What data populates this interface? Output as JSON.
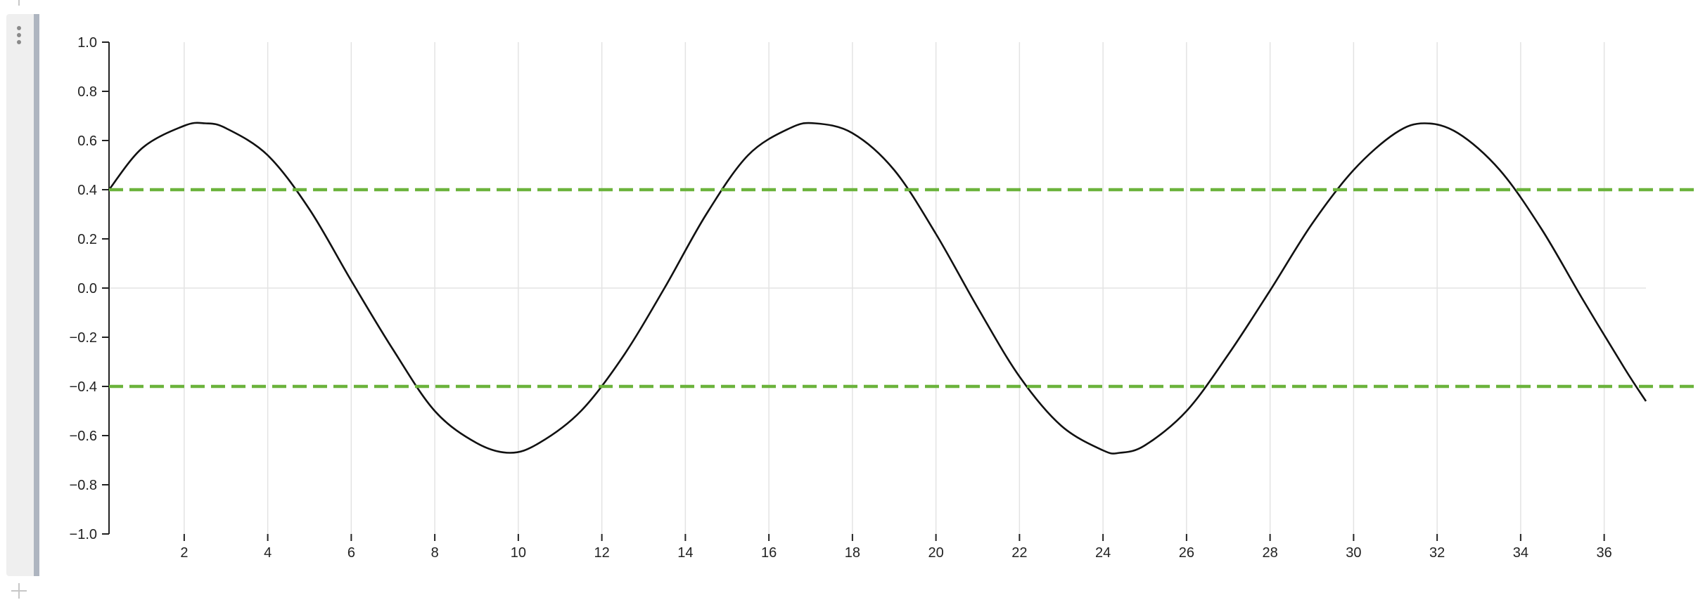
{
  "colors": {
    "curve": "#111111",
    "threshold": "#6bb33c",
    "grid": "#e3e3e3",
    "axis": "#222222"
  },
  "icons": {
    "add_above": "plus-icon",
    "add_below": "plus-icon",
    "cell_menu": "kebab-icon"
  },
  "chart_data": {
    "type": "line",
    "title": "",
    "xlabel": "",
    "ylabel": "",
    "xlim": [
      0.2,
      37
    ],
    "ylim": [
      -1.0,
      1.0
    ],
    "x_ticks": [
      2,
      4,
      6,
      8,
      10,
      12,
      14,
      16,
      18,
      20,
      22,
      24,
      26,
      28,
      30,
      32,
      34,
      36
    ],
    "y_ticks": [
      "1.0",
      "0.8",
      "0.6",
      "0.4",
      "0.2",
      "0.0",
      "−0.2",
      "−0.4",
      "−0.6",
      "−0.8",
      "−1.0"
    ],
    "y_tick_values": [
      1.0,
      0.8,
      0.6,
      0.4,
      0.2,
      0.0,
      -0.2,
      -0.4,
      -0.6,
      -0.8,
      -1.0
    ],
    "grid": "vertical",
    "zero_line": true,
    "series": [
      {
        "x": [
          0.2,
          1.0,
          2.0,
          2.5,
          3.0,
          4.0,
          5.0,
          6.0,
          7.0,
          8.0,
          9.0,
          9.8,
          10.5,
          11.5,
          12.5,
          13.5,
          14.5,
          15.5,
          16.5,
          17.1,
          18.0,
          19.0,
          20.0,
          21.0,
          22.0,
          23.0,
          24.0,
          24.4,
          25.0,
          26.0,
          27.0,
          28.0,
          29.0,
          30.0,
          31.0,
          31.7,
          32.5,
          33.5,
          34.5,
          35.5,
          36.5,
          37.0
        ],
        "y": [
          0.4,
          0.57,
          0.66,
          0.67,
          0.65,
          0.54,
          0.32,
          0.03,
          -0.25,
          -0.5,
          -0.63,
          -0.67,
          -0.63,
          -0.5,
          -0.28,
          0.0,
          0.3,
          0.54,
          0.65,
          0.67,
          0.63,
          0.48,
          0.22,
          -0.08,
          -0.36,
          -0.56,
          -0.66,
          -0.67,
          -0.64,
          -0.5,
          -0.27,
          -0.01,
          0.26,
          0.48,
          0.63,
          0.67,
          0.63,
          0.48,
          0.24,
          -0.05,
          -0.33,
          -0.46
        ]
      },
      {
        "style": "dashed",
        "y_constant": 0.4,
        "x_range": [
          0.2,
          38.2
        ]
      },
      {
        "style": "dashed",
        "y_constant": -0.4,
        "x_range": [
          0.2,
          38.2
        ]
      }
    ]
  }
}
